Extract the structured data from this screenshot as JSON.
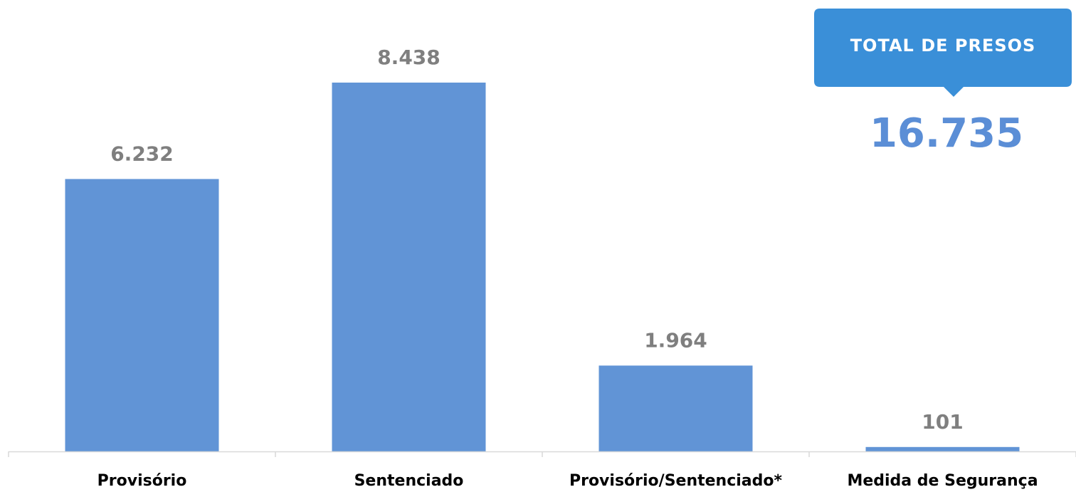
{
  "chart_data": {
    "type": "bar",
    "categories": [
      "Provisório",
      "Sentenciado",
      "Provisório/Sentenciado*",
      "Medida de Segurança"
    ],
    "values": [
      6232,
      8438,
      1964,
      101
    ],
    "value_labels": [
      "6.232",
      "8.438",
      "1.964",
      "101"
    ],
    "ylim": [
      0,
      10000
    ],
    "grid": false,
    "legend": "none",
    "bar_color": "#6194d6"
  },
  "callout": {
    "title": "TOTAL DE PRESOS",
    "value": "16.735",
    "box_color": "#3a8fd8",
    "value_color": "#5b8ed6"
  }
}
